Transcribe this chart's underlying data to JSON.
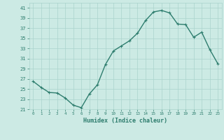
{
  "title": "",
  "xlabel": "Humidex (Indice chaleur)",
  "x": [
    0,
    1,
    2,
    3,
    4,
    5,
    6,
    7,
    8,
    9,
    10,
    11,
    12,
    13,
    14,
    15,
    16,
    17,
    18,
    19,
    20,
    21,
    22,
    23
  ],
  "y": [
    26.5,
    25.3,
    24.3,
    24.2,
    23.2,
    21.8,
    21.3,
    24.0,
    25.8,
    29.8,
    32.5,
    33.5,
    34.5,
    36.0,
    38.5,
    40.2,
    40.5,
    40.0,
    37.8,
    37.7,
    35.2,
    36.2,
    32.8,
    30.0
  ],
  "line_color": "#2e7d6e",
  "marker": "+",
  "marker_size": 3,
  "line_width": 1.0,
  "bg_color": "#cceae4",
  "grid_color": "#aad4cc",
  "tick_color": "#2e7d6e",
  "label_color": "#2e7d6e",
  "ylim": [
    21,
    42
  ],
  "yticks": [
    21,
    23,
    25,
    27,
    29,
    31,
    33,
    35,
    37,
    39,
    41
  ],
  "xlim": [
    -0.5,
    23.5
  ],
  "xticks": [
    0,
    1,
    2,
    3,
    4,
    5,
    6,
    7,
    8,
    9,
    10,
    11,
    12,
    13,
    14,
    15,
    16,
    17,
    18,
    19,
    20,
    21,
    22,
    23
  ]
}
